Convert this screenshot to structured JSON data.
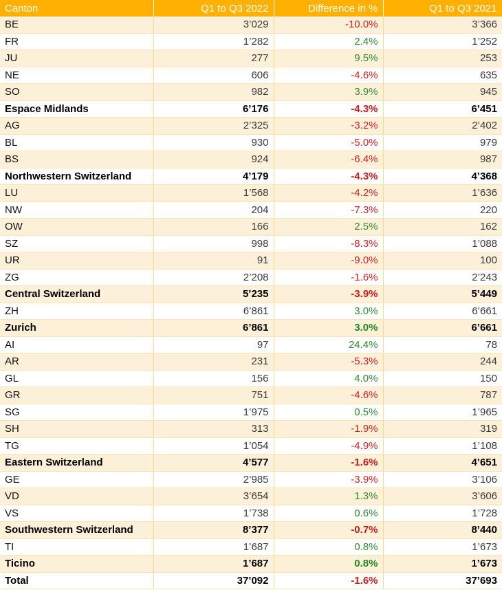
{
  "table": {
    "headers": [
      "Canton",
      "Q1 to Q3 2022",
      "Difference in %",
      "Q1 to Q3 2021"
    ],
    "rows": [
      {
        "canton": "BE",
        "q2022": "3’029",
        "diff": "-10.0%",
        "q2021": "3’366",
        "sub": false,
        "sign": "neg"
      },
      {
        "canton": "FR",
        "q2022": "1’282",
        "diff": "2.4%",
        "q2021": "1’252",
        "sub": false,
        "sign": "pos"
      },
      {
        "canton": "JU",
        "q2022": "277",
        "diff": "9.5%",
        "q2021": "253",
        "sub": false,
        "sign": "pos"
      },
      {
        "canton": "NE",
        "q2022": "606",
        "diff": "-4.6%",
        "q2021": "635",
        "sub": false,
        "sign": "neg"
      },
      {
        "canton": "SO",
        "q2022": "982",
        "diff": "3.9%",
        "q2021": "945",
        "sub": false,
        "sign": "pos"
      },
      {
        "canton": "Espace Midlands",
        "q2022": "6’176",
        "diff": "-4.3%",
        "q2021": "6’451",
        "sub": true,
        "sign": "neg"
      },
      {
        "canton": "AG",
        "q2022": "2’325",
        "diff": "-3.2%",
        "q2021": "2’402",
        "sub": false,
        "sign": "neg"
      },
      {
        "canton": "BL",
        "q2022": "930",
        "diff": "-5.0%",
        "q2021": "979",
        "sub": false,
        "sign": "neg"
      },
      {
        "canton": "BS",
        "q2022": "924",
        "diff": "-6.4%",
        "q2021": "987",
        "sub": false,
        "sign": "neg"
      },
      {
        "canton": "Northwestern Switzerland",
        "q2022": "4’179",
        "diff": "-4.3%",
        "q2021": "4’368",
        "sub": true,
        "sign": "neg"
      },
      {
        "canton": "LU",
        "q2022": "1’568",
        "diff": "-4.2%",
        "q2021": "1’636",
        "sub": false,
        "sign": "neg"
      },
      {
        "canton": "NW",
        "q2022": "204",
        "diff": "-7.3%",
        "q2021": "220",
        "sub": false,
        "sign": "neg"
      },
      {
        "canton": "OW",
        "q2022": "166",
        "diff": "2.5%",
        "q2021": "162",
        "sub": false,
        "sign": "pos"
      },
      {
        "canton": "SZ",
        "q2022": "998",
        "diff": "-8.3%",
        "q2021": "1’088",
        "sub": false,
        "sign": "neg"
      },
      {
        "canton": "UR",
        "q2022": "91",
        "diff": "-9.0%",
        "q2021": "100",
        "sub": false,
        "sign": "neg"
      },
      {
        "canton": "ZG",
        "q2022": "2’208",
        "diff": "-1.6%",
        "q2021": "2’243",
        "sub": false,
        "sign": "neg"
      },
      {
        "canton": "Central Switzerland",
        "q2022": "5’235",
        "diff": "-3.9%",
        "q2021": "5’449",
        "sub": true,
        "sign": "neg"
      },
      {
        "canton": "ZH",
        "q2022": "6’861",
        "diff": "3.0%",
        "q2021": "6’661",
        "sub": false,
        "sign": "pos"
      },
      {
        "canton": "Zurich",
        "q2022": "6’861",
        "diff": "3.0%",
        "q2021": "6’661",
        "sub": true,
        "sign": "pos"
      },
      {
        "canton": "AI",
        "q2022": "97",
        "diff": "24.4%",
        "q2021": "78",
        "sub": false,
        "sign": "pos"
      },
      {
        "canton": "AR",
        "q2022": "231",
        "diff": "-5.3%",
        "q2021": "244",
        "sub": false,
        "sign": "neg"
      },
      {
        "canton": "GL",
        "q2022": "156",
        "diff": "4.0%",
        "q2021": "150",
        "sub": false,
        "sign": "pos"
      },
      {
        "canton": "GR",
        "q2022": "751",
        "diff": "-4.6%",
        "q2021": "787",
        "sub": false,
        "sign": "neg"
      },
      {
        "canton": "SG",
        "q2022": "1’975",
        "diff": "0.5%",
        "q2021": "1’965",
        "sub": false,
        "sign": "pos"
      },
      {
        "canton": "SH",
        "q2022": "313",
        "diff": "-1.9%",
        "q2021": "319",
        "sub": false,
        "sign": "neg"
      },
      {
        "canton": "TG",
        "q2022": "1’054",
        "diff": "-4.9%",
        "q2021": "1’108",
        "sub": false,
        "sign": "neg"
      },
      {
        "canton": "Eastern Switzerland",
        "q2022": "4’577",
        "diff": "-1.6%",
        "q2021": "4’651",
        "sub": true,
        "sign": "neg"
      },
      {
        "canton": "GE",
        "q2022": "2’985",
        "diff": "-3.9%",
        "q2021": "3’106",
        "sub": false,
        "sign": "neg"
      },
      {
        "canton": "VD",
        "q2022": "3’654",
        "diff": "1.3%",
        "q2021": "3’606",
        "sub": false,
        "sign": "pos"
      },
      {
        "canton": "VS",
        "q2022": "1’738",
        "diff": "0.6%",
        "q2021": "1’728",
        "sub": false,
        "sign": "pos"
      },
      {
        "canton": "Southwestern Switzerland",
        "q2022": "8’377",
        "diff": "-0.7%",
        "q2021": "8’440",
        "sub": true,
        "sign": "neg"
      },
      {
        "canton": "TI",
        "q2022": "1’687",
        "diff": "0.8%",
        "q2021": "1’673",
        "sub": false,
        "sign": "pos"
      },
      {
        "canton": "Ticino",
        "q2022": "1’687",
        "diff": "0.8%",
        "q2021": "1’673",
        "sub": true,
        "sign": "pos"
      },
      {
        "canton": "Total",
        "q2022": "37’092",
        "diff": "-1.6%",
        "q2021": "37’693",
        "sub": true,
        "sign": "neg"
      }
    ]
  },
  "colors": {
    "header_bg": "#ffb000",
    "band_bg": "#fdf0d8",
    "positive": "#2e8b2e",
    "negative": "#d62020"
  }
}
